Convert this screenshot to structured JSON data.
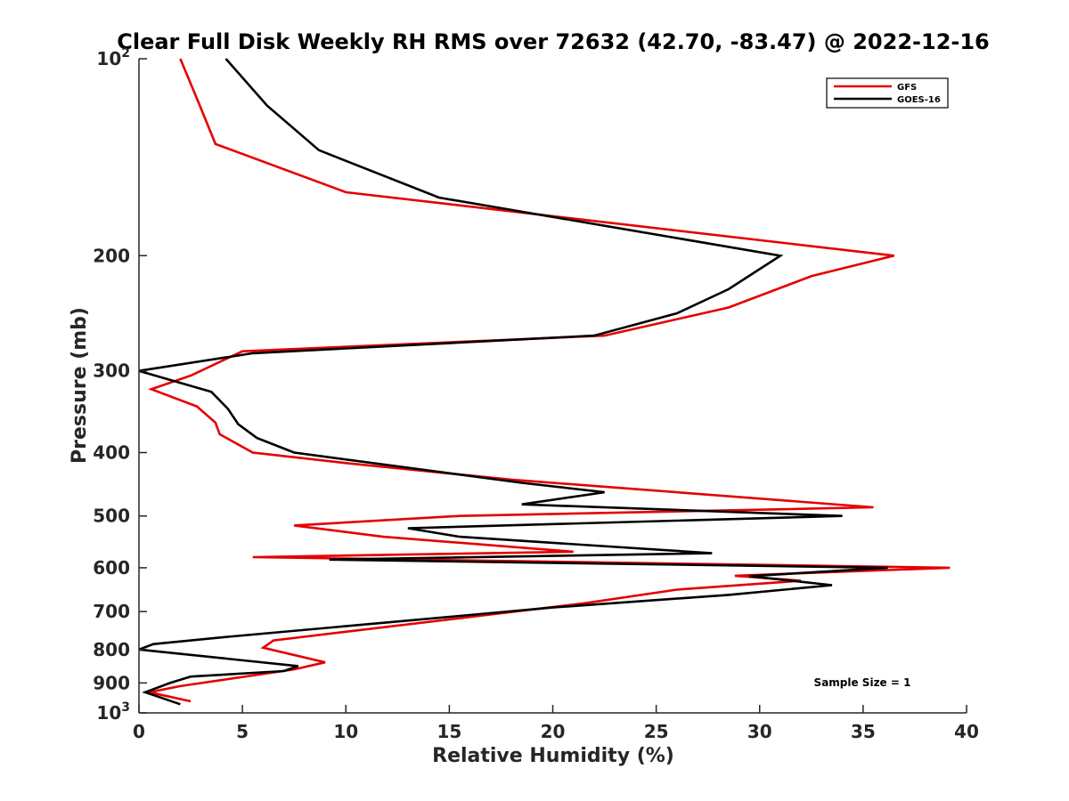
{
  "chart_data": {
    "type": "line",
    "title": "Clear Full Disk Weekly RH RMS over 72632 (42.70, -83.47) @ 2022-12-16",
    "xlabel": "Relative Humidity (%)",
    "ylabel": "Pressure (mb)",
    "xlim": [
      0,
      40
    ],
    "ylim": [
      100,
      1000
    ],
    "y_scale": "log",
    "y_reversed": true,
    "grid": false,
    "legend_position": "top-right",
    "x_ticks": [
      {
        "value": 0,
        "label": "0"
      },
      {
        "value": 5,
        "label": "5"
      },
      {
        "value": 10,
        "label": "10"
      },
      {
        "value": 15,
        "label": "15"
      },
      {
        "value": 20,
        "label": "20"
      },
      {
        "value": 25,
        "label": "25"
      },
      {
        "value": 30,
        "label": "30"
      },
      {
        "value": 35,
        "label": "35"
      },
      {
        "value": 40,
        "label": "40"
      }
    ],
    "y_ticks": [
      {
        "value": 100,
        "label": "10",
        "sup": "2"
      },
      {
        "value": 200,
        "label": "200",
        "sup": ""
      },
      {
        "value": 300,
        "label": "300",
        "sup": ""
      },
      {
        "value": 400,
        "label": "400",
        "sup": ""
      },
      {
        "value": 500,
        "label": "500",
        "sup": ""
      },
      {
        "value": 600,
        "label": "600",
        "sup": ""
      },
      {
        "value": 700,
        "label": "700",
        "sup": ""
      },
      {
        "value": 800,
        "label": "800",
        "sup": ""
      },
      {
        "value": 900,
        "label": "900",
        "sup": ""
      },
      {
        "value": 1000,
        "label": "10",
        "sup": "3"
      }
    ],
    "annotation": "Sample Size = 1",
    "series": [
      {
        "name": "GFS",
        "color": "#e50000",
        "points": [
          [
            2.0,
            100
          ],
          [
            2.8,
            115
          ],
          [
            3.7,
            135
          ],
          [
            10.0,
            160
          ],
          [
            36.5,
            200
          ],
          [
            32.5,
            215
          ],
          [
            28.5,
            240
          ],
          [
            22.5,
            265
          ],
          [
            5.0,
            280
          ],
          [
            2.5,
            305
          ],
          [
            0.6,
            320
          ],
          [
            2.8,
            340
          ],
          [
            3.7,
            360
          ],
          [
            3.9,
            375
          ],
          [
            5.5,
            400
          ],
          [
            10.0,
            415
          ],
          [
            18.0,
            440
          ],
          [
            35.5,
            485
          ],
          [
            15.5,
            500
          ],
          [
            7.5,
            517
          ],
          [
            11.8,
            538
          ],
          [
            21.0,
            567
          ],
          [
            5.5,
            578
          ],
          [
            39.2,
            600
          ],
          [
            28.8,
            617
          ],
          [
            32.0,
            628
          ],
          [
            26.0,
            648
          ],
          [
            21.5,
            680
          ],
          [
            6.5,
            775
          ],
          [
            6.0,
            795
          ],
          [
            9.0,
            837
          ],
          [
            7.5,
            858
          ],
          [
            2.0,
            910
          ],
          [
            0.5,
            930
          ],
          [
            2.5,
            960
          ]
        ]
      },
      {
        "name": "GOES-16",
        "color": "#000000",
        "points": [
          [
            4.2,
            100
          ],
          [
            6.2,
            118
          ],
          [
            8.7,
            138
          ],
          [
            14.5,
            163
          ],
          [
            31.0,
            200
          ],
          [
            28.5,
            225
          ],
          [
            26.0,
            245
          ],
          [
            22.0,
            265
          ],
          [
            5.5,
            282
          ],
          [
            0.0,
            300
          ],
          [
            3.5,
            323
          ],
          [
            4.3,
            343
          ],
          [
            4.8,
            362
          ],
          [
            5.7,
            380
          ],
          [
            7.5,
            400
          ],
          [
            18.5,
            445
          ],
          [
            22.5,
            460
          ],
          [
            18.5,
            480
          ],
          [
            34.0,
            500
          ],
          [
            13.0,
            522
          ],
          [
            15.5,
            538
          ],
          [
            27.7,
            570
          ],
          [
            9.2,
            583
          ],
          [
            36.2,
            600
          ],
          [
            29.5,
            618
          ],
          [
            33.5,
            638
          ],
          [
            28.5,
            660
          ],
          [
            20.0,
            690
          ],
          [
            4.3,
            765
          ],
          [
            0.7,
            785
          ],
          [
            0.0,
            800
          ],
          [
            7.7,
            848
          ],
          [
            7.0,
            863
          ],
          [
            2.5,
            880
          ],
          [
            1.5,
            900
          ],
          [
            0.3,
            930
          ],
          [
            2.0,
            970
          ]
        ]
      }
    ]
  }
}
